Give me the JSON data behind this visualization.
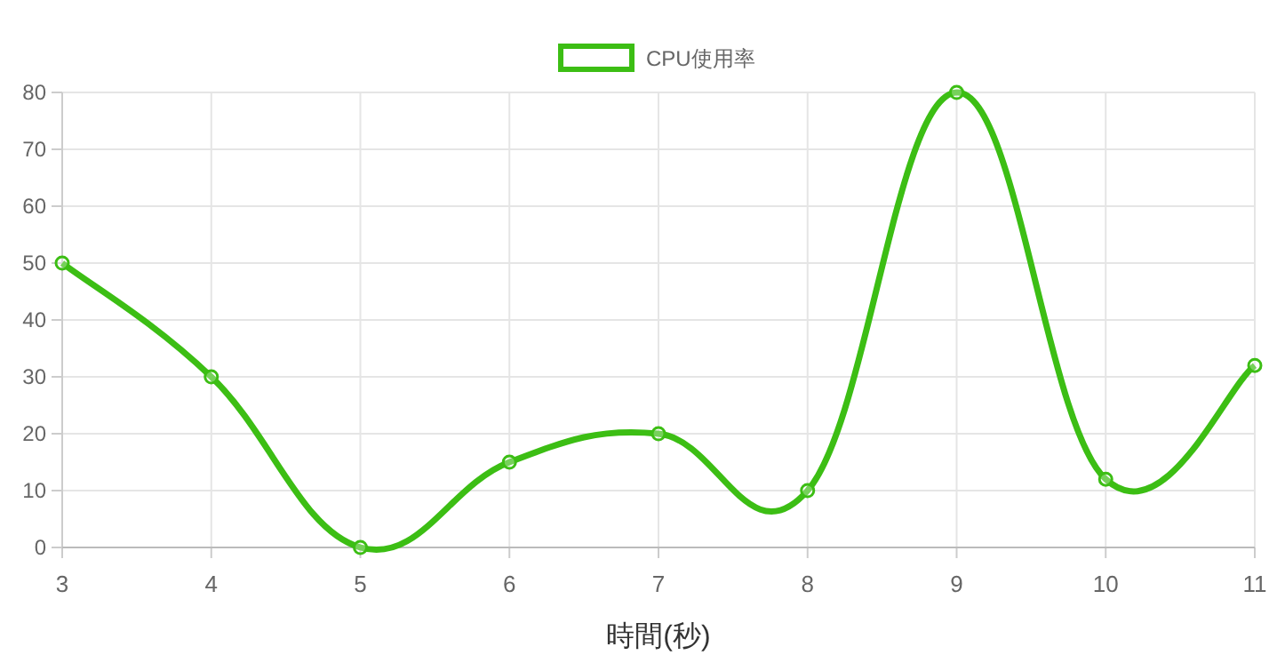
{
  "chart_data": {
    "type": "line",
    "xlabel": "時間(秒)",
    "x": [
      3,
      4,
      5,
      6,
      7,
      8,
      9,
      10,
      11
    ],
    "series": [
      {
        "name": "CPU使用率",
        "color": "#3cbe14",
        "values": [
          50,
          30,
          0,
          15,
          20,
          10,
          80,
          12,
          32
        ]
      }
    ],
    "xlim": [
      3,
      11
    ],
    "ylim": [
      0,
      80
    ],
    "xticks": [
      3,
      4,
      5,
      6,
      7,
      8,
      9,
      10,
      11
    ],
    "yticks": [
      0,
      10,
      20,
      30,
      40,
      50,
      60,
      70,
      80
    ],
    "grid": true,
    "legend": "top",
    "marker": "circle"
  }
}
